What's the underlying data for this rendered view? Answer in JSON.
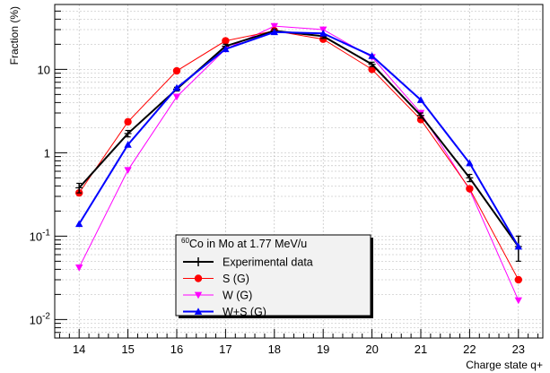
{
  "chart_data": {
    "type": "line",
    "xlabel": "Charge state q+",
    "ylabel": "Fraction (%)",
    "xlim": [
      13.5,
      23.5
    ],
    "ylim": [
      0.006,
      60
    ],
    "log_y": true,
    "grid": true,
    "x_ticks": [
      14,
      15,
      16,
      17,
      18,
      19,
      20,
      21,
      22,
      23
    ],
    "y_ticks": [
      {
        "value": 0.01,
        "base": "10",
        "exp": "-2"
      },
      {
        "value": 0.1,
        "base": "10",
        "exp": "-1"
      },
      {
        "value": 1,
        "base": "1",
        "exp": ""
      },
      {
        "value": 10,
        "base": "10",
        "exp": ""
      }
    ],
    "legend": {
      "placement": "bottom-center",
      "header_super": "60",
      "header": "Co in Mo at 1.77 MeV/u"
    },
    "series": [
      {
        "name": "Experimental data",
        "color": "#000000",
        "marker": "errorbar",
        "x": [
          14,
          15,
          16,
          17,
          18,
          19,
          20,
          21,
          22,
          23
        ],
        "y": [
          0.38,
          1.7,
          5.8,
          19,
          29,
          25,
          11.5,
          2.8,
          0.5,
          0.075
        ],
        "err_low": [
          0.33,
          1.55,
          5.5,
          18,
          27.5,
          23.5,
          10.8,
          2.6,
          0.45,
          0.05
        ],
        "err_high": [
          0.43,
          1.85,
          6.1,
          20,
          30.5,
          26.5,
          12.2,
          3.0,
          0.55,
          0.1
        ]
      },
      {
        "name": "S (G)",
        "color": "#ff0000",
        "marker": "circle",
        "x": [
          14,
          15,
          16,
          17,
          18,
          19,
          20,
          21,
          22,
          23
        ],
        "y": [
          0.33,
          2.35,
          9.6,
          22,
          29,
          23,
          10,
          2.5,
          0.37,
          0.03
        ]
      },
      {
        "name": "W (G)",
        "color": "#ff00ff",
        "marker": "triangle-down",
        "x": [
          14,
          15,
          16,
          17,
          18,
          19,
          20,
          21,
          22,
          23
        ],
        "y": [
          0.042,
          0.62,
          4.7,
          17.5,
          33,
          30,
          14,
          3.0,
          0.36,
          0.017
        ]
      },
      {
        "name": "W+S (G)",
        "color": "#0000ff",
        "marker": "triangle-up",
        "x": [
          14,
          15,
          16,
          17,
          18,
          19,
          20,
          21,
          22,
          23
        ],
        "y": [
          0.14,
          1.25,
          6.0,
          17.5,
          28,
          27,
          14.5,
          4.3,
          0.75,
          0.075
        ]
      }
    ]
  }
}
